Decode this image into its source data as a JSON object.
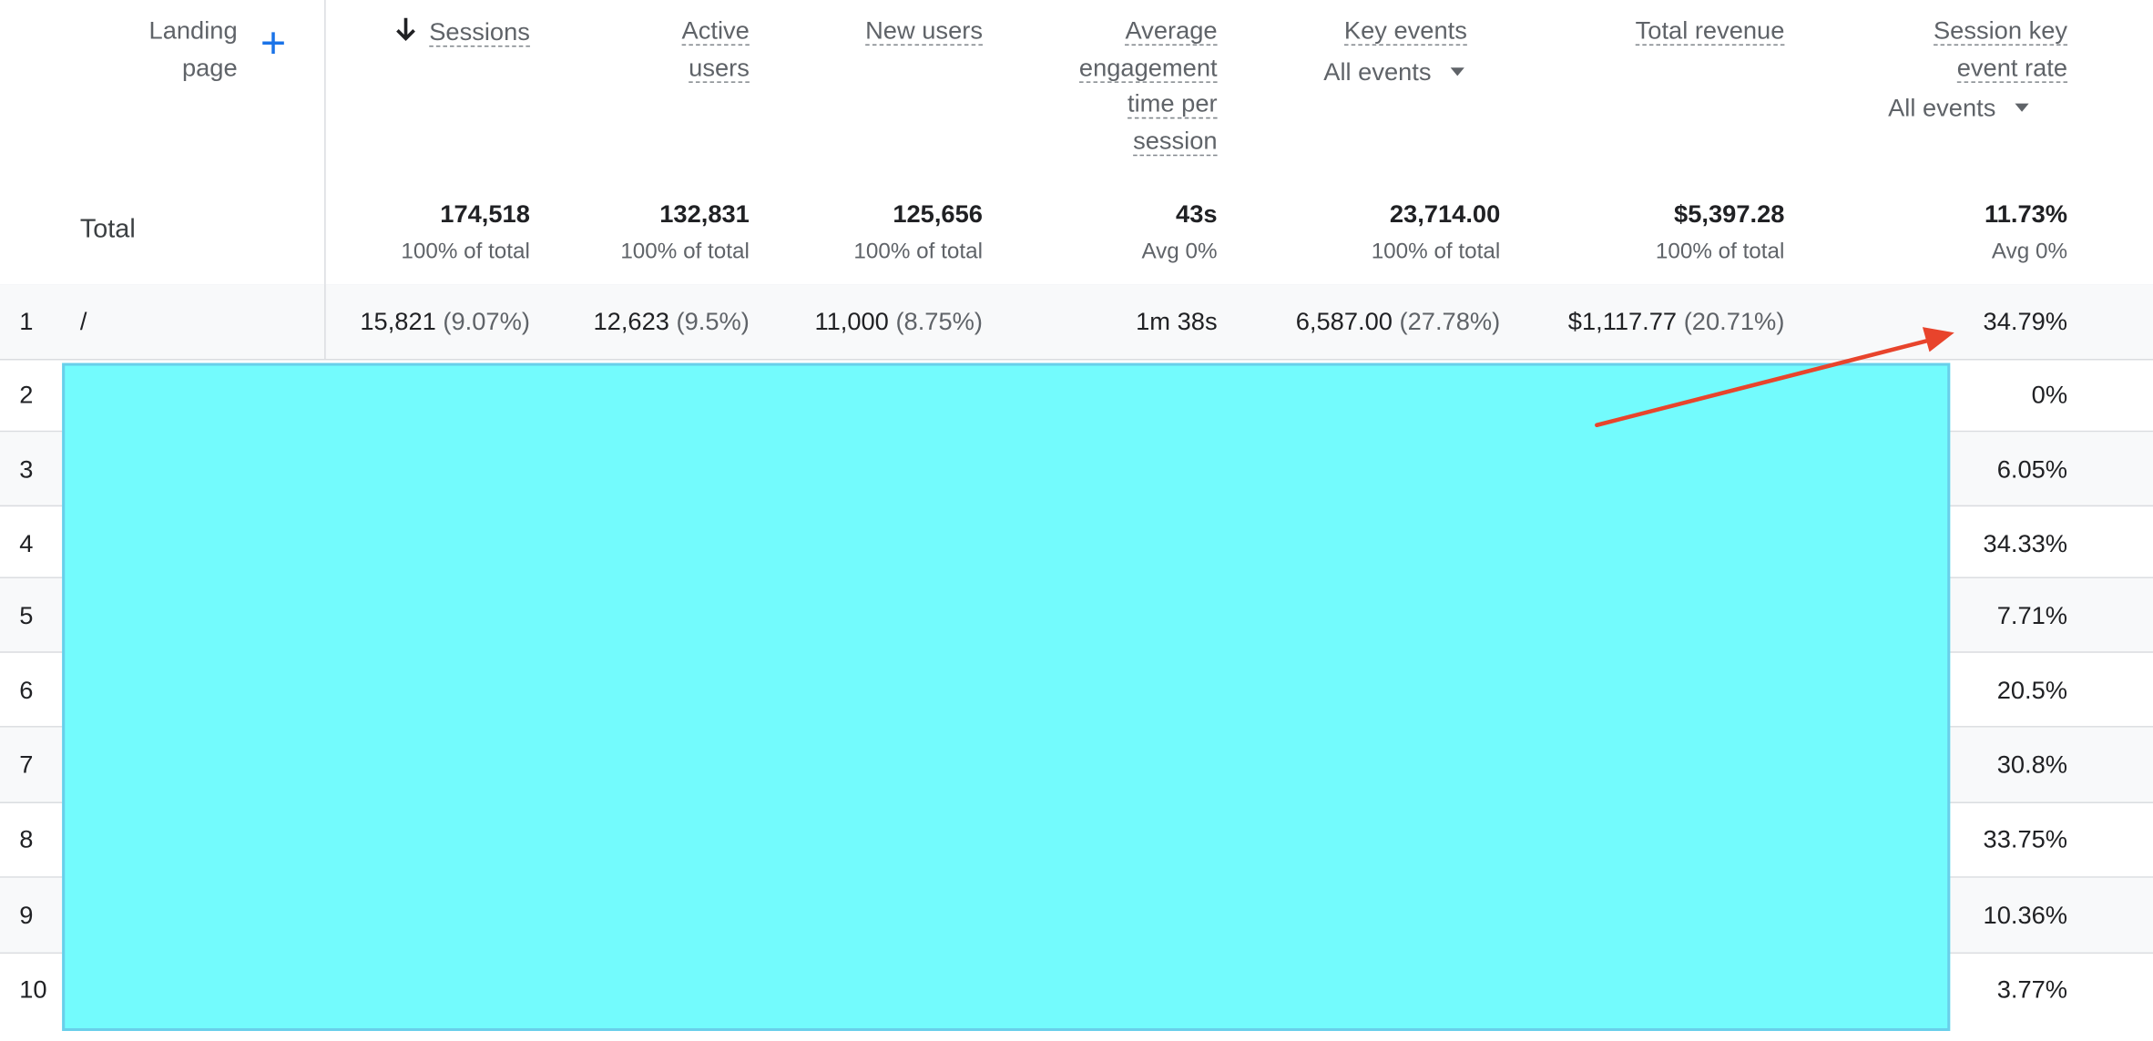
{
  "header": {
    "landing_page": "Landing page",
    "add_icon": "plus-icon",
    "sort_icon": "arrow-down-icon",
    "sessions": "Sessions",
    "active_users_1": "Active",
    "active_users_2": "users",
    "new_users": "New users",
    "avg_eng_1": "Average",
    "avg_eng_2": "engagement",
    "avg_eng_3": "time per",
    "avg_eng_4": "session",
    "key_events": "Key events",
    "key_events_filter": "All events",
    "total_revenue": "Total revenue",
    "session_rate_1": "Session key",
    "session_rate_2": "event rate",
    "session_rate_filter": "All events"
  },
  "totals": {
    "label": "Total",
    "sessions": "174,518",
    "sessions_sub": "100% of total",
    "active_users": "132,831",
    "active_users_sub": "100% of total",
    "new_users": "125,656",
    "new_users_sub": "100% of total",
    "avg_eng": "43s",
    "avg_eng_sub": "Avg 0%",
    "key_events": "23,714.00",
    "key_events_sub": "100% of total",
    "revenue": "$5,397.28",
    "revenue_sub": "100% of total",
    "rate": "11.73%",
    "rate_sub": "Avg 0%"
  },
  "rows": [
    {
      "num": "1",
      "page": "/",
      "sessions": "15,821",
      "sessions_pct": "(9.07%)",
      "active_users": "12,623",
      "active_users_pct": "(9.5%)",
      "new_users": "11,000",
      "new_users_pct": "(8.75%)",
      "avg_eng": "1m 38s",
      "key_events": "6,587.00",
      "key_events_pct": "(27.78%)",
      "revenue": "$1,117.77",
      "revenue_pct": "(20.71%)",
      "rate": "34.79%"
    },
    {
      "num": "2",
      "rate": "0%"
    },
    {
      "num": "3",
      "rate": "6.05%"
    },
    {
      "num": "4",
      "rate": "34.33%"
    },
    {
      "num": "5",
      "rate": "7.71%"
    },
    {
      "num": "6",
      "rate": "20.5%"
    },
    {
      "num": "7",
      "rate": "30.8%"
    },
    {
      "num": "8",
      "rate": "33.75%"
    },
    {
      "num": "9",
      "rate": "10.36%"
    },
    {
      "num": "10",
      "rate": "3.77%"
    }
  ],
  "colors": {
    "accent": "#1a73e8",
    "redaction": "#73fbfd",
    "annotation_arrow": "#e8442c"
  }
}
